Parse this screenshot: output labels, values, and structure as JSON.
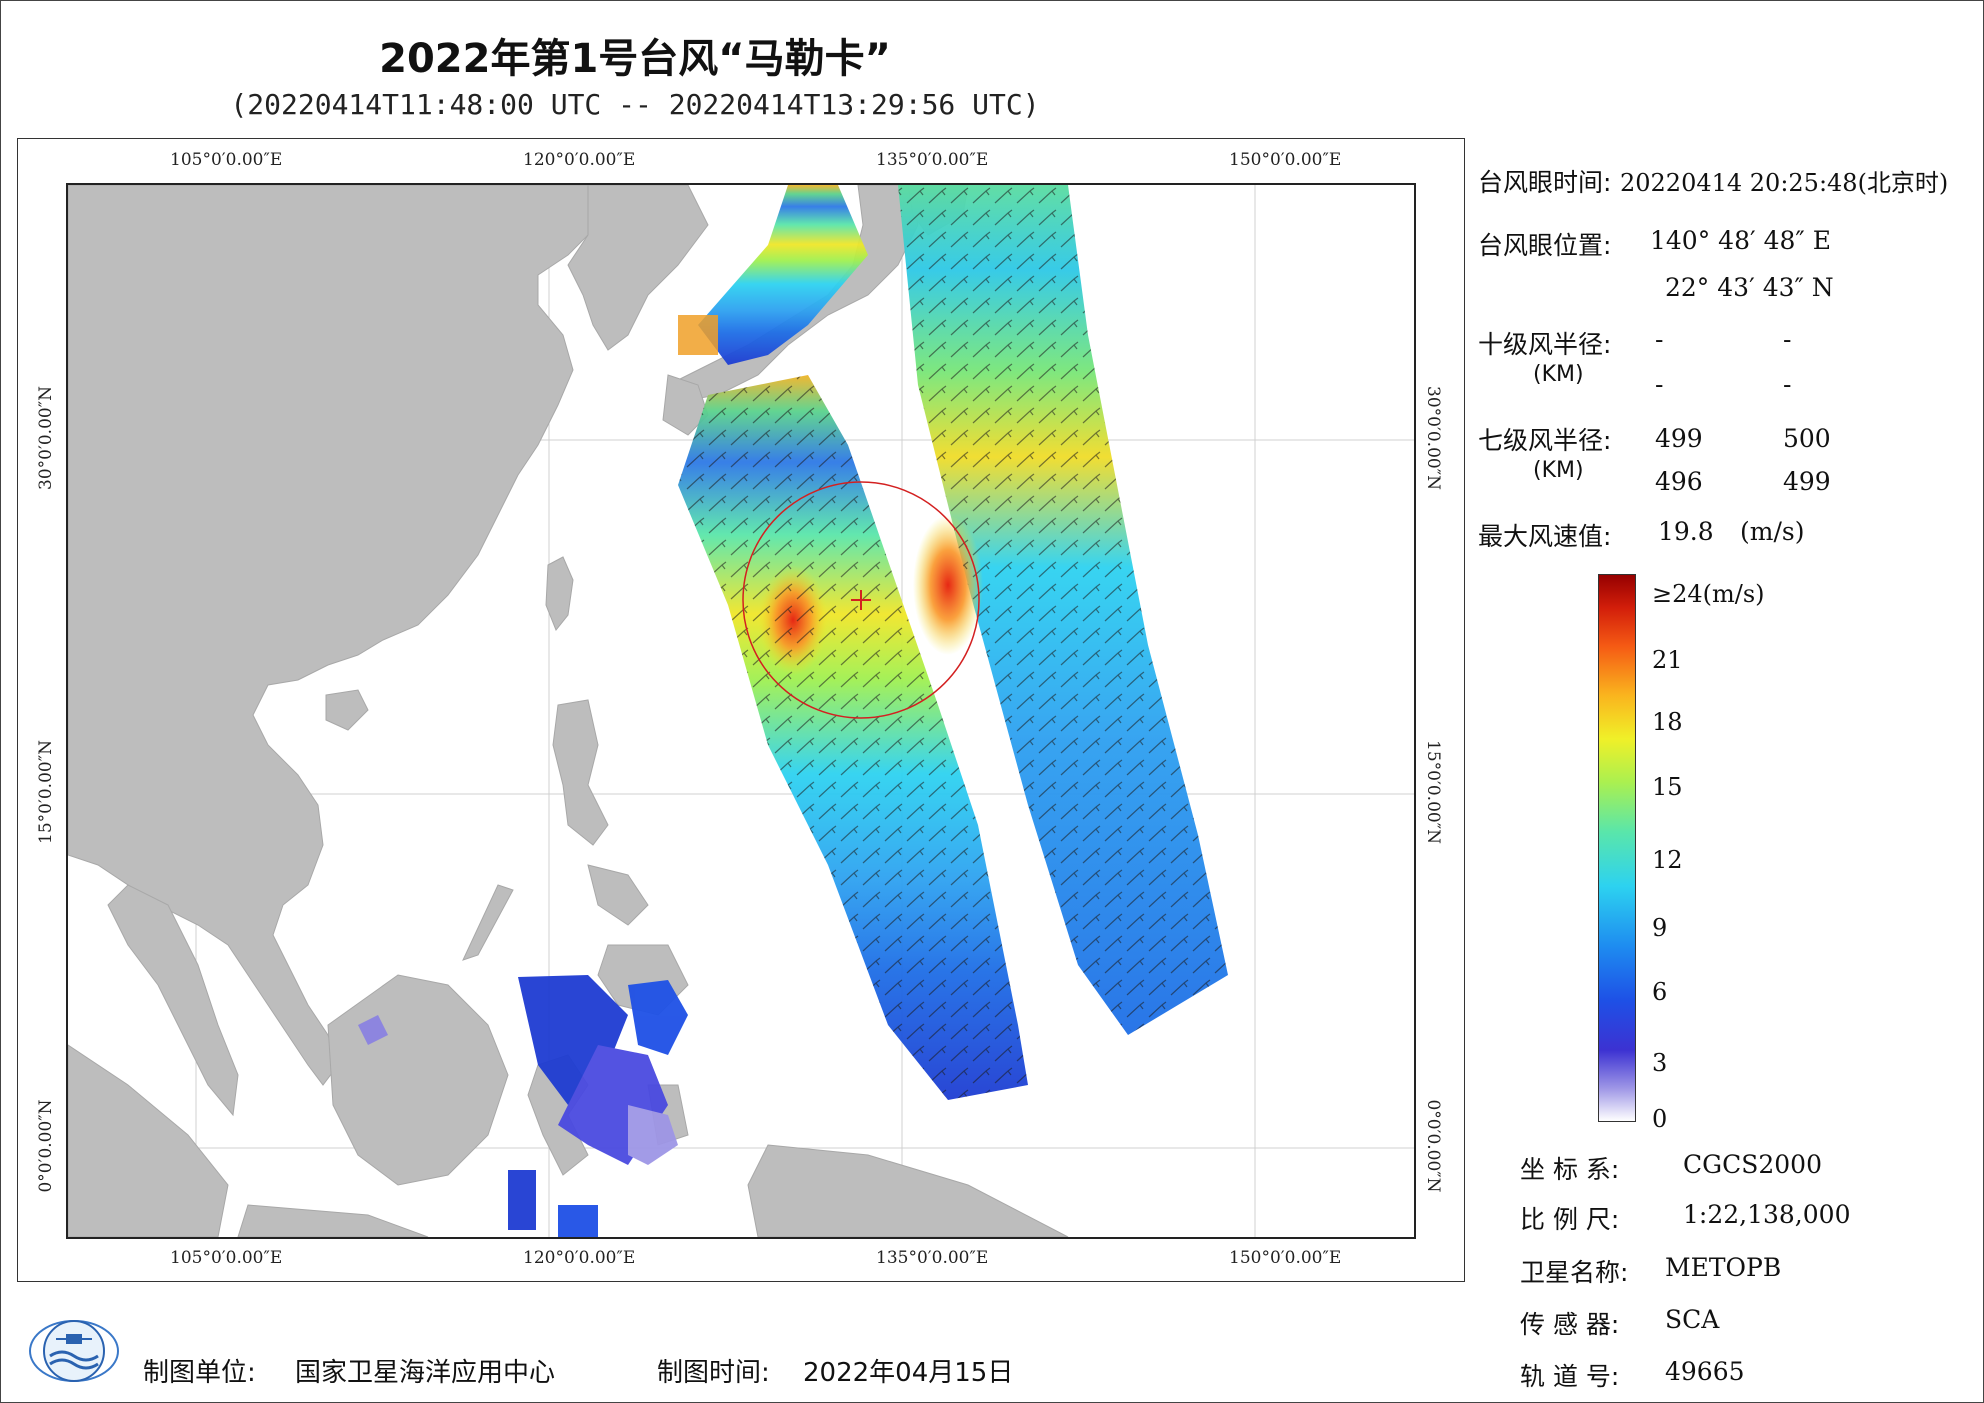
{
  "header": {
    "title": "2022年第1号台风“马勒卡”",
    "subtitle": "(20220414T11:48:00 UTC -- 20220414T13:29:56 UTC)"
  },
  "map": {
    "lon_ticks": [
      "105°0′0.00″E",
      "120°0′0.00″E",
      "135°0′0.00″E",
      "150°0′0.00″E"
    ],
    "lat_ticks": [
      "30°0′0.00″N",
      "15°0′0.00″N",
      "0°0′0.00″N"
    ],
    "extent": {
      "lon": [
        98.2,
        155.5
      ],
      "lat": [
        -3.8,
        40.9
      ]
    },
    "typhoon_eye": {
      "lon": 140.813,
      "lat": 22.729
    },
    "colors": {
      "land": "#bdbdbd",
      "ocean": "#ffffff",
      "circle": "#d32020",
      "swath_base": "#2dc8e6"
    }
  },
  "info": {
    "eye_time_label": "台风眼时间:",
    "eye_time_value": "20220414 20:25:48(北京时)",
    "eye_pos_label": "台风眼位置:",
    "eye_lon": "140° 48′ 48″ E",
    "eye_lat": "22° 43′ 43″ N",
    "r10_label": "十级风半径:",
    "r10_unit": "(KM)",
    "r10_values": [
      "-",
      "-",
      "-",
      "-"
    ],
    "r7_label": "七级风半径:",
    "r7_unit": "(KM)",
    "r7_values": [
      "499",
      "500",
      "496",
      "499"
    ],
    "max_wind_label": "最大风速值:",
    "max_wind_value": "19.8",
    "max_wind_unit": "(m/s)"
  },
  "colorbar": {
    "labels": [
      "≥24(m/s)",
      "21",
      "18",
      "15",
      "12",
      "9",
      "6",
      "3",
      "0"
    ]
  },
  "meta": {
    "crs_label": "坐 标 系:",
    "crs_value": "CGCS2000",
    "scale_label": "比 例 尺:",
    "scale_value": "1:22,138,000",
    "satellite_label": "卫星名称:",
    "satellite_value": "METOPB",
    "sensor_label": "传 感 器:",
    "sensor_value": "SCA",
    "orbit_label": "轨 道 号:",
    "orbit_value": "49665"
  },
  "footer": {
    "producer_label": "制图单位:",
    "producer_value": "国家卫星海洋应用中心",
    "date_label": "制图时间:",
    "date_value": "2022年04月15日"
  }
}
